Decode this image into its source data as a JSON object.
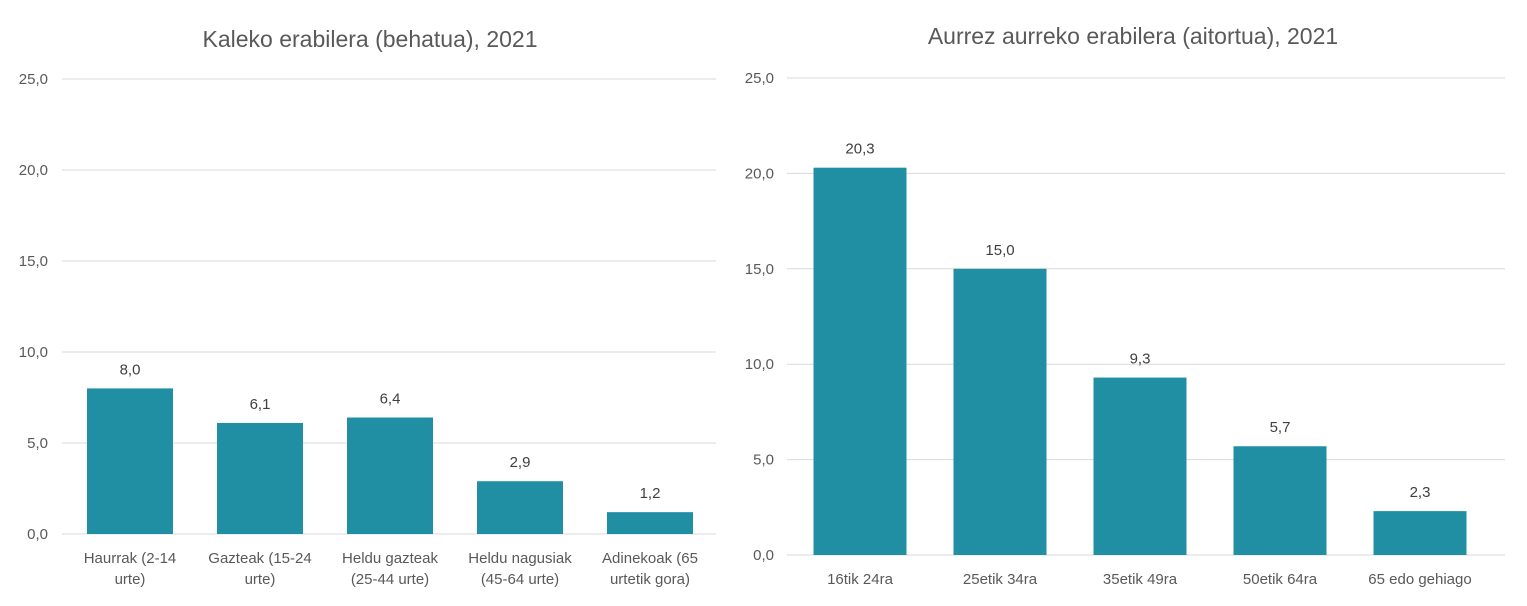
{
  "chart_data": [
    {
      "type": "bar",
      "title": "Kaleko erabilera (behatua), 2021",
      "categories": [
        [
          "Haurrak (2-14",
          "urte)"
        ],
        [
          "Gazteak (15-24",
          "urte)"
        ],
        [
          "Heldu gazteak",
          "(25-44 urte)"
        ],
        [
          "Heldu nagusiak",
          "(45-64 urte)"
        ],
        [
          "Adinekoak (65",
          "urtetik gora)"
        ]
      ],
      "values": [
        8.0,
        6.1,
        6.4,
        2.9,
        1.2
      ],
      "data_labels": [
        "8,0",
        "6,1",
        "6,4",
        "2,9",
        "1,2"
      ],
      "yticks": [
        "0,0",
        "5,0",
        "10,0",
        "15,0",
        "20,0",
        "25,0"
      ],
      "ylim": [
        0,
        25
      ],
      "grid": true,
      "color": "#208FA3"
    },
    {
      "type": "bar",
      "title": "Aurrez aurreko erabilera (aitortua), 2021",
      "categories": [
        [
          "16tik 24ra"
        ],
        [
          "25etik 34ra"
        ],
        [
          "35etik 49ra"
        ],
        [
          "50etik 64ra"
        ],
        [
          "65 edo gehiago"
        ]
      ],
      "values": [
        20.3,
        15.0,
        9.3,
        5.7,
        2.3
      ],
      "data_labels": [
        "20,3",
        "15,0",
        "9,3",
        "5,7",
        "2,3"
      ],
      "yticks": [
        "0,0",
        "5,0",
        "10,0",
        "15,0",
        "20,0",
        "25,0"
      ],
      "ylim": [
        0,
        25
      ],
      "grid": true,
      "color": "#208FA3"
    }
  ]
}
